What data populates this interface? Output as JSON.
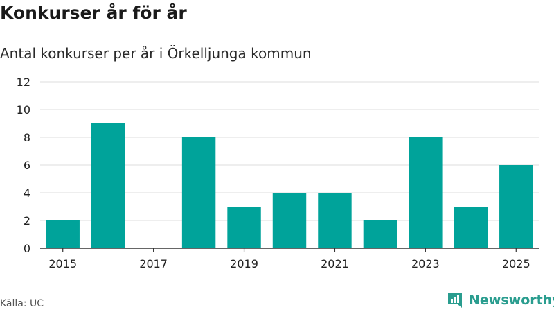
{
  "title": "Konkurser år för år",
  "subtitle": "Antal konkurser per år i Örkelljunga kommun",
  "source": "Källa: UC",
  "brand": {
    "name": "Newsworthy",
    "logo_icon": "bar-chart-flag-icon"
  },
  "colors": {
    "bar": "#00a39a",
    "grid": "#dddddd",
    "axis": "#333333",
    "brand": "#2a9d8f"
  },
  "chart_data": {
    "type": "bar",
    "title": "Konkurser år för år",
    "subtitle": "Antal konkurser per år i Örkelljunga kommun",
    "xlabel": "",
    "ylabel": "",
    "categories": [
      2015,
      2016,
      2017,
      2018,
      2019,
      2020,
      2021,
      2022,
      2023,
      2024,
      2025
    ],
    "values": [
      2,
      9,
      0,
      8,
      3,
      4,
      4,
      2,
      8,
      3,
      6
    ],
    "ylim": [
      0,
      12
    ],
    "y_ticks": [
      0,
      2,
      4,
      6,
      8,
      10,
      12
    ],
    "x_tick_labels": [
      "2015",
      "2017",
      "2019",
      "2021",
      "2023",
      "2025"
    ],
    "grid": true,
    "legend": "none"
  }
}
